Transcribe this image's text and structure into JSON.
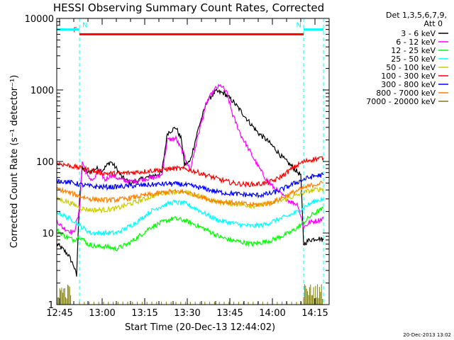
{
  "chart_data": {
    "type": "line",
    "title": "HESSI Observing Summary Count Rates, Corrected",
    "xlabel": "Start Time (20-Dec-13 12:44:02)",
    "ylabel": "Corrected Count Rate (s⁻¹ detector⁻¹)",
    "yscale": "log",
    "ylim": [
      1,
      10000
    ],
    "xlim": [
      "12:44",
      "14:20"
    ],
    "x_ticks": [
      "12:45",
      "13:00",
      "13:15",
      "13:30",
      "13:45",
      "14:00",
      "14:15"
    ],
    "y_ticks": [
      "1",
      "10",
      "100",
      "1000",
      "10000"
    ],
    "legend_header": [
      "Det 1,3,5,6,7,9,",
      "Att 0"
    ],
    "legend_position": "right, outside plot",
    "flags": [
      {
        "label": "F",
        "color": "#ff0000",
        "start": "12:52",
        "end": "14:11",
        "level": 6000
      },
      {
        "label": "N",
        "color": "#00ffff",
        "start": "14:11",
        "end": "14:18",
        "level": 7000
      }
    ],
    "night_intervals": [
      [
        "12:44",
        "12:52"
      ],
      [
        "14:11",
        "14:18"
      ]
    ],
    "series": [
      {
        "name": "3 - 6 keV",
        "color": "#000000",
        "points": [
          [
            "12:44",
            7
          ],
          [
            "12:46",
            6
          ],
          [
            "12:48",
            5
          ],
          [
            "12:50",
            3.5
          ],
          [
            "12:51",
            2.5
          ],
          [
            "12:52",
            30
          ],
          [
            "12:53",
            80
          ],
          [
            "12:55",
            70
          ],
          [
            "12:58",
            80
          ],
          [
            "13:00",
            75
          ],
          [
            "13:03",
            100
          ],
          [
            "13:05",
            80
          ],
          [
            "13:07",
            60
          ],
          [
            "13:10",
            50
          ],
          [
            "13:13",
            55
          ],
          [
            "13:16",
            60
          ],
          [
            "13:19",
            65
          ],
          [
            "13:21",
            70
          ],
          [
            "13:23",
            250
          ],
          [
            "13:26",
            300
          ],
          [
            "13:28",
            200
          ],
          [
            "13:29",
            90
          ],
          [
            "13:31",
            100
          ],
          [
            "13:34",
            300
          ],
          [
            "13:37",
            700
          ],
          [
            "13:40",
            950
          ],
          [
            "13:43",
            900
          ],
          [
            "13:46",
            700
          ],
          [
            "13:49",
            500
          ],
          [
            "13:52",
            350
          ],
          [
            "13:55",
            250
          ],
          [
            "13:58",
            200
          ],
          [
            "14:01",
            150
          ],
          [
            "14:03",
            120
          ],
          [
            "14:05",
            100
          ],
          [
            "14:07",
            85
          ],
          [
            "14:09",
            70
          ],
          [
            "14:10",
            65
          ],
          [
            "14:11",
            7
          ],
          [
            "14:13",
            8
          ],
          [
            "14:16",
            8.5
          ],
          [
            "14:18",
            8
          ]
        ]
      },
      {
        "name": "6 - 12 keV",
        "color": "#ff00ff",
        "points": [
          [
            "12:44",
            15
          ],
          [
            "12:46",
            12
          ],
          [
            "12:48",
            11
          ],
          [
            "12:50",
            10
          ],
          [
            "12:52",
            20
          ],
          [
            "12:53",
            100
          ],
          [
            "12:55",
            60
          ],
          [
            "12:57",
            55
          ],
          [
            "12:59",
            75
          ],
          [
            "13:01",
            55
          ],
          [
            "13:03",
            65
          ],
          [
            "13:05",
            60
          ],
          [
            "13:07",
            55
          ],
          [
            "13:10",
            52
          ],
          [
            "13:13",
            55
          ],
          [
            "13:16",
            58
          ],
          [
            "13:19",
            60
          ],
          [
            "13:21",
            65
          ],
          [
            "13:23",
            200
          ],
          [
            "13:26",
            210
          ],
          [
            "13:29",
            120
          ],
          [
            "13:31",
            75
          ],
          [
            "13:34",
            250
          ],
          [
            "13:37",
            700
          ],
          [
            "13:40",
            1050
          ],
          [
            "13:42",
            1150
          ],
          [
            "13:44",
            900
          ],
          [
            "13:46",
            450
          ],
          [
            "13:49",
            230
          ],
          [
            "13:52",
            140
          ],
          [
            "13:55",
            85
          ],
          [
            "13:58",
            55
          ],
          [
            "14:00",
            45
          ],
          [
            "14:03",
            35
          ],
          [
            "14:06",
            28
          ],
          [
            "14:09",
            25
          ],
          [
            "14:11",
            12
          ],
          [
            "14:13",
            14
          ],
          [
            "14:16",
            15
          ],
          [
            "14:18",
            16
          ]
        ]
      },
      {
        "name": "12 - 25 keV",
        "color": "#00ff00",
        "points": [
          [
            "12:44",
            11
          ],
          [
            "12:47",
            9
          ],
          [
            "12:50",
            8
          ],
          [
            "12:52",
            9
          ],
          [
            "12:55",
            7
          ],
          [
            "12:58",
            6.5
          ],
          [
            "13:01",
            6.5
          ],
          [
            "13:05",
            6
          ],
          [
            "13:09",
            7
          ],
          [
            "13:13",
            9
          ],
          [
            "13:17",
            12
          ],
          [
            "13:21",
            14
          ],
          [
            "13:25",
            16
          ],
          [
            "13:29",
            15
          ],
          [
            "13:33",
            13
          ],
          [
            "13:37",
            11
          ],
          [
            "13:41",
            9
          ],
          [
            "13:45",
            8
          ],
          [
            "13:49",
            7.5
          ],
          [
            "13:53",
            7
          ],
          [
            "13:57",
            7.5
          ],
          [
            "14:00",
            8
          ],
          [
            "14:03",
            9
          ],
          [
            "14:06",
            10
          ],
          [
            "14:09",
            12
          ],
          [
            "14:11",
            14
          ],
          [
            "14:14",
            18
          ],
          [
            "14:16",
            20
          ],
          [
            "14:18",
            22
          ]
        ]
      },
      {
        "name": "25 - 50 keV",
        "color": "#00ffff",
        "points": [
          [
            "12:44",
            20
          ],
          [
            "12:47",
            17
          ],
          [
            "12:50",
            15
          ],
          [
            "12:53",
            12
          ],
          [
            "12:56",
            10
          ],
          [
            "13:00",
            10
          ],
          [
            "13:05",
            10
          ],
          [
            "13:09",
            12
          ],
          [
            "13:13",
            15
          ],
          [
            "13:17",
            20
          ],
          [
            "13:21",
            24
          ],
          [
            "13:25",
            27
          ],
          [
            "13:29",
            26
          ],
          [
            "13:33",
            22
          ],
          [
            "13:37",
            18
          ],
          [
            "13:41",
            15
          ],
          [
            "13:45",
            14
          ],
          [
            "13:49",
            13
          ],
          [
            "13:53",
            12.5
          ],
          [
            "13:57",
            13
          ],
          [
            "14:01",
            15
          ],
          [
            "14:05",
            17
          ],
          [
            "14:09",
            20
          ],
          [
            "14:12",
            24
          ],
          [
            "14:15",
            28
          ],
          [
            "14:18",
            30
          ]
        ]
      },
      {
        "name": "50 - 100 keV",
        "color": "#cccc00",
        "points": [
          [
            "12:44",
            30
          ],
          [
            "12:47",
            28
          ],
          [
            "12:50",
            25
          ],
          [
            "12:53",
            22
          ],
          [
            "12:56",
            21
          ],
          [
            "13:00",
            21
          ],
          [
            "13:05",
            22
          ],
          [
            "13:09",
            25
          ],
          [
            "13:13",
            28
          ],
          [
            "13:17",
            32
          ],
          [
            "13:21",
            36
          ],
          [
            "13:25",
            38
          ],
          [
            "13:29",
            37
          ],
          [
            "13:33",
            34
          ],
          [
            "13:37",
            30
          ],
          [
            "13:41",
            27
          ],
          [
            "13:45",
            26
          ],
          [
            "13:49",
            25
          ],
          [
            "13:53",
            24
          ],
          [
            "13:57",
            25
          ],
          [
            "14:01",
            27
          ],
          [
            "14:05",
            30
          ],
          [
            "14:09",
            34
          ],
          [
            "14:12",
            38
          ],
          [
            "14:15",
            40
          ],
          [
            "14:18",
            42
          ]
        ]
      },
      {
        "name": "100 - 300 keV",
        "color": "#ff0000",
        "points": [
          [
            "12:44",
            95
          ],
          [
            "12:47",
            90
          ],
          [
            "12:50",
            85
          ],
          [
            "12:53",
            80
          ],
          [
            "12:56",
            75
          ],
          [
            "12:59",
            70
          ],
          [
            "13:02",
            68
          ],
          [
            "13:06",
            68
          ],
          [
            "13:10",
            70
          ],
          [
            "13:14",
            72
          ],
          [
            "13:18",
            75
          ],
          [
            "13:22",
            78
          ],
          [
            "13:26",
            80
          ],
          [
            "13:30",
            78
          ],
          [
            "13:34",
            70
          ],
          [
            "13:38",
            62
          ],
          [
            "13:42",
            55
          ],
          [
            "13:46",
            50
          ],
          [
            "13:50",
            48
          ],
          [
            "13:54",
            48
          ],
          [
            "13:58",
            50
          ],
          [
            "14:01",
            55
          ],
          [
            "14:04",
            65
          ],
          [
            "14:07",
            80
          ],
          [
            "14:10",
            95
          ],
          [
            "14:13",
            105
          ],
          [
            "14:16",
            110
          ],
          [
            "14:18",
            112
          ]
        ]
      },
      {
        "name": "300 - 800 keV",
        "color": "#0000ff",
        "points": [
          [
            "12:44",
            55
          ],
          [
            "12:47",
            52
          ],
          [
            "12:50",
            50
          ],
          [
            "12:53",
            47
          ],
          [
            "12:56",
            45
          ],
          [
            "13:00",
            44
          ],
          [
            "13:04",
            44
          ],
          [
            "13:08",
            45
          ],
          [
            "13:12",
            46
          ],
          [
            "13:16",
            47
          ],
          [
            "13:20",
            48
          ],
          [
            "13:24",
            49
          ],
          [
            "13:28",
            48
          ],
          [
            "13:32",
            45
          ],
          [
            "13:36",
            42
          ],
          [
            "13:40",
            38
          ],
          [
            "13:44",
            36
          ],
          [
            "13:48",
            35
          ],
          [
            "13:52",
            34
          ],
          [
            "13:56",
            34
          ],
          [
            "14:00",
            36
          ],
          [
            "14:04",
            42
          ],
          [
            "14:08",
            50
          ],
          [
            "14:12",
            58
          ],
          [
            "14:15",
            63
          ],
          [
            "14:18",
            65
          ]
        ]
      },
      {
        "name": "800 - 7000 keV",
        "color": "#ff8000",
        "points": [
          [
            "12:44",
            42
          ],
          [
            "12:47",
            38
          ],
          [
            "12:50",
            35
          ],
          [
            "12:53",
            32
          ],
          [
            "12:56",
            30
          ],
          [
            "13:00",
            29
          ],
          [
            "13:04",
            29
          ],
          [
            "13:08",
            30
          ],
          [
            "13:12",
            32
          ],
          [
            "13:16",
            34
          ],
          [
            "13:20",
            36
          ],
          [
            "13:24",
            38
          ],
          [
            "13:28",
            38
          ],
          [
            "13:32",
            35
          ],
          [
            "13:36",
            31
          ],
          [
            "13:40",
            28
          ],
          [
            "13:44",
            27
          ],
          [
            "13:48",
            26
          ],
          [
            "13:52",
            25
          ],
          [
            "13:56",
            25
          ],
          [
            "14:00",
            27
          ],
          [
            "14:04",
            32
          ],
          [
            "14:08",
            38
          ],
          [
            "14:12",
            44
          ],
          [
            "14:15",
            48
          ],
          [
            "14:18",
            50
          ]
        ]
      },
      {
        "name": "7000 - 20000 keV",
        "color": "#808000",
        "points": []
      }
    ]
  },
  "footer": {
    "date_stamp": "20-Dec-2013 13:02"
  }
}
